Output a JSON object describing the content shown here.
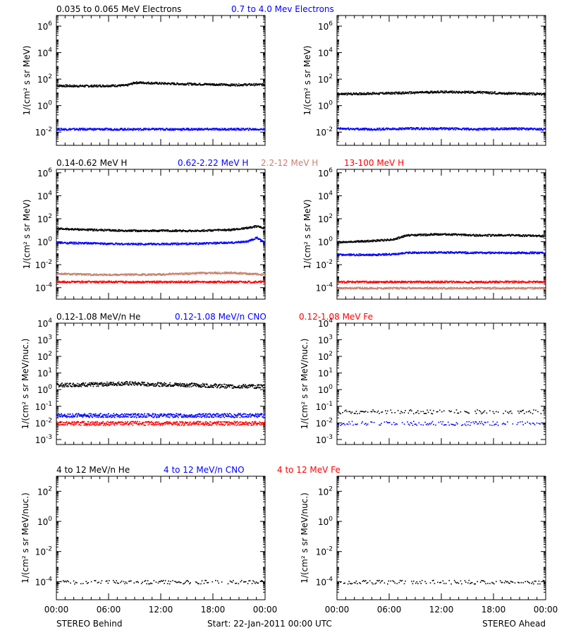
{
  "colors": {
    "black": "#000000",
    "blue": "#0000ff",
    "tan": "#c8806c",
    "red": "#ff0000"
  },
  "time_ticks": [
    "00:00",
    "06:00",
    "12:00",
    "18:00",
    "00:00"
  ],
  "footer": {
    "left": "STEREO Behind",
    "center": "Start: 22-Jan-2011 00:00 UTC",
    "right": "STEREO Ahead"
  },
  "rows": [
    {
      "legend": [
        {
          "text": "0.035 to 0.065 MeV Electrons",
          "color": "#000000"
        },
        {
          "text": "0.7 to 4.0 Mev Electrons",
          "color": "#0000ff"
        }
      ],
      "ylabel": "1/(cm² s sr MeV)",
      "yticks": [
        {
          "base": "10",
          "exp": "6",
          "value": 1000000
        },
        {
          "base": "10",
          "exp": "4",
          "value": 10000
        },
        {
          "base": "10",
          "exp": "2",
          "value": 100
        },
        {
          "base": "10",
          "exp": "0",
          "value": 1
        },
        {
          "base": "10",
          "exp": "-2",
          "value": 0.01
        }
      ]
    },
    {
      "legend": [
        {
          "text": "0.14-0.62 MeV H",
          "color": "#000000"
        },
        {
          "text": "0.62-2.22 MeV H",
          "color": "#0000ff"
        },
        {
          "text": "2.2-12 MeV H",
          "color": "#c8806c"
        },
        {
          "text": "13-100 MeV H",
          "color": "#ff0000"
        }
      ],
      "ylabel": "1/(cm² s sr MeV)",
      "yticks": [
        {
          "base": "10",
          "exp": "6",
          "value": 1000000
        },
        {
          "base": "10",
          "exp": "4",
          "value": 10000
        },
        {
          "base": "10",
          "exp": "2",
          "value": 100
        },
        {
          "base": "10",
          "exp": "0",
          "value": 1
        },
        {
          "base": "10",
          "exp": "-2",
          "value": 0.01
        },
        {
          "base": "10",
          "exp": "-4",
          "value": 0.0001
        }
      ]
    },
    {
      "legend": [
        {
          "text": "0.12-1.08 MeV/n He",
          "color": "#000000"
        },
        {
          "text": "0.12-1.08 MeV/n CNO",
          "color": "#0000ff"
        },
        {
          "text": "0.12-1.08 MeV Fe",
          "color": "#ff0000"
        }
      ],
      "ylabel": "1/(cm² s sr MeV/nuc.)",
      "yticks": [
        {
          "base": "10",
          "exp": "4",
          "value": 10000
        },
        {
          "base": "10",
          "exp": "3",
          "value": 1000
        },
        {
          "base": "10",
          "exp": "2",
          "value": 100
        },
        {
          "base": "10",
          "exp": "1",
          "value": 10
        },
        {
          "base": "10",
          "exp": "0",
          "value": 1
        },
        {
          "base": "10",
          "exp": "-1",
          "value": 0.1
        },
        {
          "base": "10",
          "exp": "-2",
          "value": 0.01
        },
        {
          "base": "10",
          "exp": "-3",
          "value": 0.001
        }
      ]
    },
    {
      "legend": [
        {
          "text": "4 to 12 MeV/n He",
          "color": "#000000"
        },
        {
          "text": "4 to 12 MeV/n CNO",
          "color": "#0000ff"
        },
        {
          "text": "4 to 12 MeV Fe",
          "color": "#ff0000"
        }
      ],
      "ylabel": "1/(cm² s sr MeV/nuc.)",
      "yticks": [
        {
          "base": "10",
          "exp": "2",
          "value": 100
        },
        {
          "base": "10",
          "exp": "0",
          "value": 1
        },
        {
          "base": "10",
          "exp": "-2",
          "value": 0.01
        },
        {
          "base": "10",
          "exp": "-4",
          "value": 0.0001
        }
      ]
    }
  ],
  "chart_data": [
    {
      "type": "scatter",
      "spacecraft": "STEREO Behind",
      "panel": "electrons",
      "y_scale": "log",
      "ylim": [
        0.001,
        1000000
      ],
      "xlim_hours": [
        0,
        24
      ],
      "series": [
        {
          "name": "0.035 to 0.065 MeV Electrons",
          "color": "#000000",
          "x_hours": [
            0,
            2,
            4,
            6,
            8,
            9,
            10,
            12,
            14,
            16,
            18,
            20,
            22,
            24
          ],
          "y": [
            35,
            33,
            33,
            35,
            36,
            60,
            58,
            52,
            48,
            46,
            44,
            40,
            42,
            42
          ]
        },
        {
          "name": "0.7 to 4.0 Mev Electrons",
          "color": "#0000ff",
          "x_hours": [
            0,
            4,
            8,
            12,
            16,
            20,
            24
          ],
          "y": [
            0.018,
            0.018,
            0.018,
            0.018,
            0.018,
            0.018,
            0.018
          ]
        }
      ]
    },
    {
      "type": "scatter",
      "spacecraft": "STEREO Ahead",
      "panel": "electrons",
      "y_scale": "log",
      "ylim": [
        0.001,
        1000000
      ],
      "xlim_hours": [
        0,
        24
      ],
      "series": [
        {
          "name": "0.035 to 0.065 MeV Electrons",
          "color": "#000000",
          "x_hours": [
            0,
            4,
            8,
            12,
            16,
            20,
            24
          ],
          "y": [
            8,
            9,
            10,
            12,
            11,
            9,
            8
          ]
        },
        {
          "name": "0.7 to 4.0 Mev Electrons",
          "color": "#0000ff",
          "x_hours": [
            0,
            4,
            8,
            12,
            16,
            20,
            24
          ],
          "y": [
            0.02,
            0.018,
            0.02,
            0.02,
            0.018,
            0.02,
            0.018
          ]
        }
      ]
    },
    {
      "type": "scatter",
      "spacecraft": "STEREO Behind",
      "panel": "protons",
      "y_scale": "log",
      "ylim": [
        1e-05,
        1000000
      ],
      "xlim_hours": [
        0,
        24
      ],
      "series": [
        {
          "name": "0.14-0.62 MeV H",
          "color": "#000000",
          "x_hours": [
            0,
            4,
            8,
            12,
            16,
            20,
            22,
            23,
            24
          ],
          "y": [
            15,
            12,
            10,
            10,
            10,
            12,
            18,
            25,
            15
          ]
        },
        {
          "name": "0.62-2.22 MeV H",
          "color": "#0000ff",
          "x_hours": [
            0,
            4,
            8,
            12,
            16,
            20,
            22,
            23,
            24
          ],
          "y": [
            0.9,
            0.8,
            0.7,
            0.7,
            0.75,
            0.9,
            1.2,
            2.5,
            0.8
          ]
        },
        {
          "name": "2.2-12 MeV H",
          "color": "#c8806c",
          "x_hours": [
            0,
            4,
            8,
            12,
            16,
            20,
            24
          ],
          "y": [
            0.0018,
            0.0015,
            0.0015,
            0.0016,
            0.002,
            0.0022,
            0.0015
          ]
        },
        {
          "name": "13-100 MeV H",
          "color": "#ff0000",
          "x_hours": [
            0,
            4,
            8,
            12,
            16,
            20,
            24
          ],
          "y": [
            0.00035,
            0.00035,
            0.00035,
            0.00035,
            0.00035,
            0.00035,
            0.00035
          ]
        }
      ]
    },
    {
      "type": "scatter",
      "spacecraft": "STEREO Ahead",
      "panel": "protons",
      "y_scale": "log",
      "ylim": [
        1e-05,
        1000000
      ],
      "xlim_hours": [
        0,
        24
      ],
      "series": [
        {
          "name": "0.14-0.62 MeV H",
          "color": "#000000",
          "x_hours": [
            0,
            4,
            6.5,
            8,
            12,
            16,
            20,
            24
          ],
          "y": [
            1,
            1.3,
            1.8,
            4,
            5,
            4,
            4,
            3.5
          ]
        },
        {
          "name": "0.62-2.22 MeV H",
          "color": "#0000ff",
          "x_hours": [
            0,
            4,
            6.5,
            8,
            12,
            16,
            20,
            24
          ],
          "y": [
            0.08,
            0.08,
            0.09,
            0.12,
            0.13,
            0.12,
            0.12,
            0.12
          ]
        },
        {
          "name": "2.2-12 MeV H",
          "color": "#c8806c",
          "x_hours": [
            0,
            6,
            12,
            18,
            24
          ],
          "y": [
            0.0001,
            0.0001,
            0.0001,
            0.0001,
            0.0001
          ]
        },
        {
          "name": "13-100 MeV H",
          "color": "#ff0000",
          "x_hours": [
            0,
            6,
            12,
            18,
            24
          ],
          "y": [
            0.00035,
            0.00035,
            0.00035,
            0.00035,
            0.00035
          ]
        }
      ]
    },
    {
      "type": "scatter",
      "spacecraft": "STEREO Behind",
      "panel": "heavy ions low energy",
      "y_scale": "log",
      "ylim": [
        0.0005,
        10000
      ],
      "xlim_hours": [
        0,
        24
      ],
      "series": [
        {
          "name": "0.12-1.08 MeV/n He",
          "color": "#000000",
          "x_hours": [
            0,
            4,
            8,
            12,
            16,
            20,
            24
          ],
          "y": [
            2,
            2.2,
            2.5,
            2.2,
            2,
            1.7,
            1.7
          ]
        },
        {
          "name": "0.12-1.08 MeV/n CNO",
          "color": "#0000ff",
          "x_hours": [
            0,
            6,
            12,
            18,
            24
          ],
          "y": [
            0.03,
            0.03,
            0.03,
            0.03,
            0.03
          ]
        },
        {
          "name": "0.12-1.08 MeV Fe",
          "color": "#ff0000",
          "x_hours": [
            0,
            6,
            12,
            18,
            24
          ],
          "y": [
            0.01,
            0.01,
            0.01,
            0.01,
            0.01
          ]
        }
      ]
    },
    {
      "type": "scatter",
      "spacecraft": "STEREO Ahead",
      "panel": "heavy ions low energy",
      "y_scale": "log",
      "ylim": [
        0.0005,
        10000
      ],
      "xlim_hours": [
        0,
        24
      ],
      "series": [
        {
          "name": "0.12-1.08 MeV/n He",
          "color": "#000000",
          "x_hours": [
            0,
            6,
            12,
            18,
            24
          ],
          "y": [
            0.05,
            0.05,
            0.05,
            0.05,
            0.05
          ]
        },
        {
          "name": "0.12-1.08 MeV/n CNO",
          "color": "#0000ff",
          "x_hours": [
            0,
            6,
            12,
            18,
            24
          ],
          "y": [
            0.01,
            0.01,
            0.01,
            0.01,
            0.01
          ]
        }
      ]
    },
    {
      "type": "scatter",
      "spacecraft": "STEREO Behind",
      "panel": "heavy ions high energy",
      "y_scale": "log",
      "ylim": [
        1e-05,
        1000
      ],
      "xlim_hours": [
        0,
        24
      ],
      "series": [
        {
          "name": "4 to 12 MeV/n He",
          "color": "#000000",
          "x_hours": [
            0,
            6,
            12,
            18,
            24
          ],
          "y": [
            0.0001,
            0.0001,
            0.0001,
            0.0001,
            0.0001
          ]
        }
      ]
    },
    {
      "type": "scatter",
      "spacecraft": "STEREO Ahead",
      "panel": "heavy ions high energy",
      "y_scale": "log",
      "ylim": [
        1e-05,
        1000
      ],
      "xlim_hours": [
        0,
        24
      ],
      "series": [
        {
          "name": "4 to 12 MeV/n He",
          "color": "#000000",
          "x_hours": [
            0,
            4,
            8,
            12,
            16,
            20,
            24
          ],
          "y": [
            0.0001,
            0.0001,
            0.0001,
            0.0001,
            0.0001,
            0.0001,
            0.0001
          ]
        }
      ]
    }
  ]
}
